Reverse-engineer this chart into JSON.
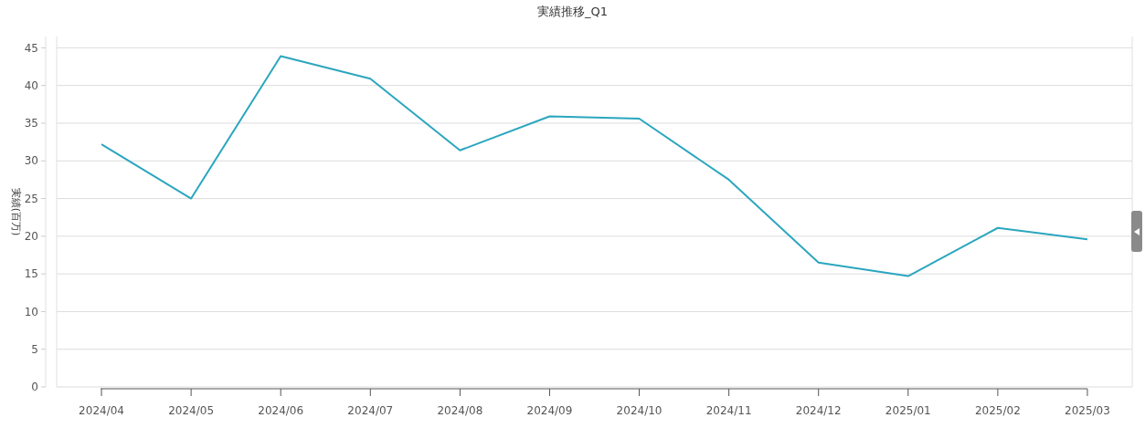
{
  "chart_data": {
    "type": "line",
    "title": "実績推移_Q1",
    "ylabel": "実績(百万)",
    "categories": [
      "2024/04",
      "2024/05",
      "2024/06",
      "2024/07",
      "2024/08",
      "2024/09",
      "2024/10",
      "2024/11",
      "2024/12",
      "2025/01",
      "2025/02",
      "2025/03"
    ],
    "series": [
      {
        "color": "#2ba6bf",
        "values": [
          32.2,
          25.0,
          43.9,
          40.9,
          31.4,
          35.9,
          35.6,
          27.5,
          16.5,
          14.7,
          21.1,
          19.6
        ]
      }
    ],
    "ylim": [
      0,
      46.5
    ],
    "yticks": [
      0,
      5,
      10,
      15,
      20,
      25,
      30,
      35,
      40,
      45
    ],
    "grid": "y",
    "marker": "none",
    "line_style": "solid"
  }
}
